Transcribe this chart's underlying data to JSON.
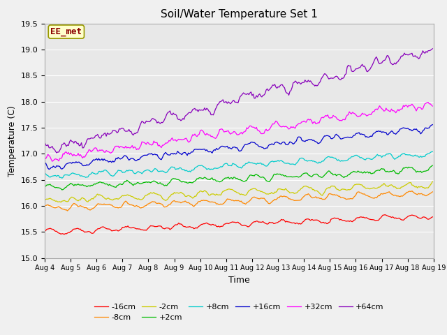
{
  "title": "Soil/Water Temperature Set 1",
  "xlabel": "Time",
  "ylabel": "Temperature (C)",
  "ylim": [
    15.0,
    19.5
  ],
  "xlim": [
    0,
    360
  ],
  "fig_facecolor": "#f0f0f0",
  "plot_bg_color": "#e8e8e8",
  "series": [
    {
      "label": "-16cm",
      "color": "#ff0000",
      "start": 15.5,
      "end": 15.8,
      "amp": 0.04,
      "noise": 0.03,
      "period_scale": 1.0
    },
    {
      "label": "-8cm",
      "color": "#ff8800",
      "start": 15.95,
      "end": 16.25,
      "amp": 0.05,
      "noise": 0.03,
      "period_scale": 1.0
    },
    {
      "label": "-2cm",
      "color": "#cccc00",
      "start": 16.1,
      "end": 16.4,
      "amp": 0.06,
      "noise": 0.04,
      "period_scale": 1.0
    },
    {
      "label": "+2cm",
      "color": "#00bb00",
      "start": 16.35,
      "end": 16.7,
      "amp": 0.06,
      "noise": 0.04,
      "period_scale": 1.0
    },
    {
      "label": "+8cm",
      "color": "#00cccc",
      "start": 16.55,
      "end": 17.0,
      "amp": 0.07,
      "noise": 0.04,
      "period_scale": 1.0
    },
    {
      "label": "+16cm",
      "color": "#0000cc",
      "start": 16.75,
      "end": 17.5,
      "amp": 0.09,
      "noise": 0.05,
      "period_scale": 1.0
    },
    {
      "label": "+32cm",
      "color": "#ff00ff",
      "start": 16.9,
      "end": 17.95,
      "amp": 0.18,
      "noise": 0.07,
      "period_scale": 1.0
    },
    {
      "label": "+64cm",
      "color": "#8800bb",
      "start": 17.05,
      "end": 19.0,
      "amp": 0.28,
      "noise": 0.09,
      "period_scale": 1.0
    }
  ],
  "watermark": "EE_met",
  "watermark_color": "#8b0000",
  "watermark_bg": "#ffffcc",
  "watermark_edge": "#999900",
  "n_points": 360,
  "tick_dates": [
    "Aug 4",
    "Aug 5",
    "Aug 6",
    "Aug 7",
    "Aug 8",
    "Aug 9",
    "Aug 10",
    "Aug 11",
    "Aug 12",
    "Aug 13",
    "Aug 14",
    "Aug 15",
    "Aug 16",
    "Aug 17",
    "Aug 18",
    "Aug 19"
  ],
  "tick_positions": [
    0,
    24,
    48,
    72,
    96,
    120,
    144,
    168,
    192,
    216,
    240,
    264,
    288,
    312,
    336,
    360
  ],
  "yticks": [
    15.0,
    15.5,
    16.0,
    16.5,
    17.0,
    17.5,
    18.0,
    18.5,
    19.0,
    19.5
  ],
  "grid_color": "#ffffff",
  "title_fontsize": 11,
  "axis_fontsize": 9,
  "tick_fontsize": 7,
  "legend_fontsize": 8,
  "line_width": 0.9
}
